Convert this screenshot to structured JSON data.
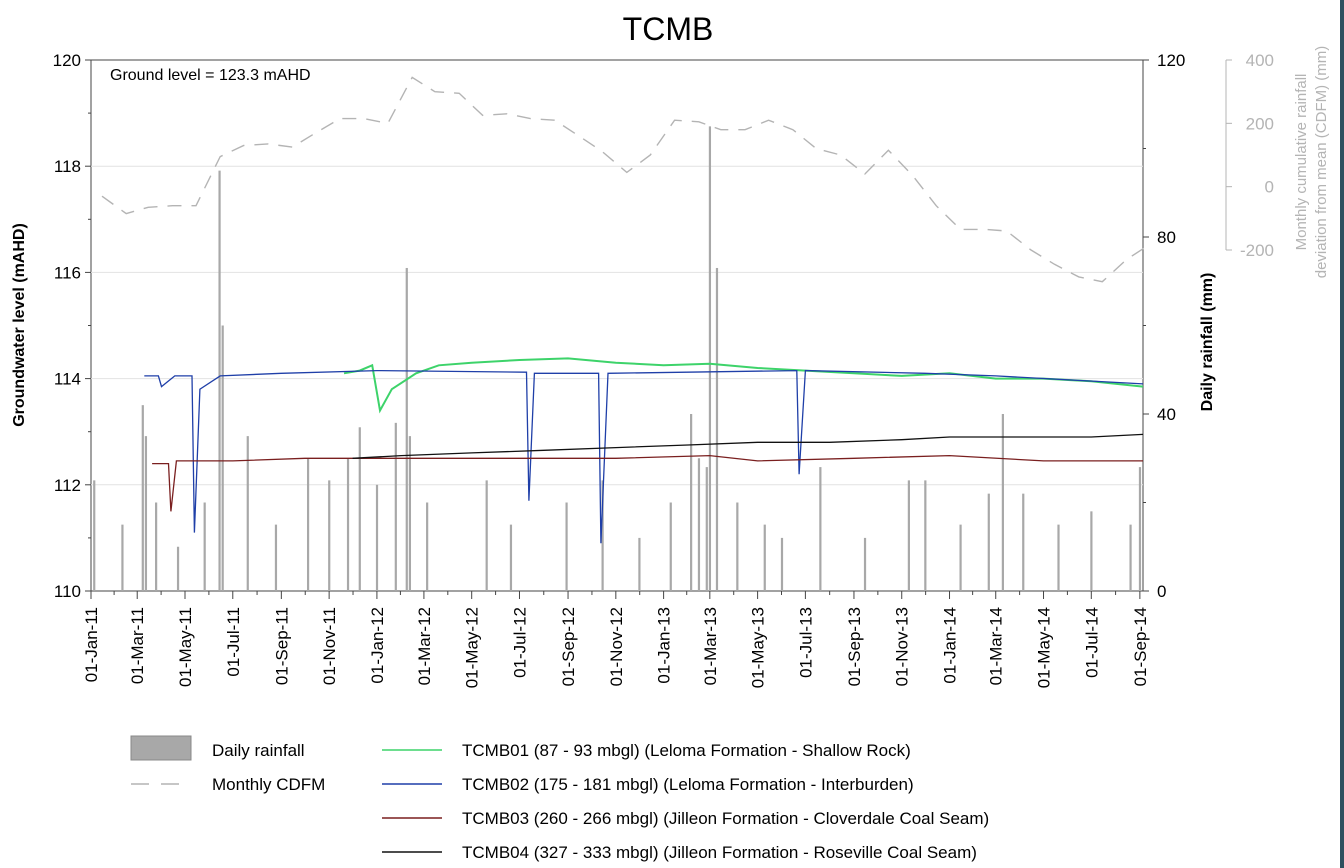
{
  "chart_data": {
    "type": "line",
    "title": "TCMB",
    "annotation": "Ground level = 123.3 mAHD",
    "left_axis": {
      "label": "Groundwater level (mAHD)",
      "range": [
        110,
        120
      ],
      "ticks": [
        "110",
        "112",
        "114",
        "116",
        "118",
        "120"
      ]
    },
    "right_axis_1": {
      "label": "Daily rainfall (mm)",
      "range": [
        0,
        120
      ],
      "ticks": [
        "0",
        "40",
        "80",
        "120"
      ]
    },
    "right_axis_2": {
      "label_lines": [
        "Monthly cumulative rainfall",
        "deviation from mean (CDFM) (mm)"
      ],
      "range": [
        -200,
        400
      ],
      "ticks": [
        "-200",
        "0",
        "200",
        "400"
      ],
      "color": "#b4b4b4"
    },
    "x_axis": {
      "ticks": [
        "01-Jan-11",
        "01-Mar-11",
        "01-May-11",
        "01-Jul-11",
        "01-Sep-11",
        "01-Nov-11",
        "01-Jan-12",
        "01-Mar-12",
        "01-May-12",
        "01-Jul-12",
        "01-Sep-12",
        "01-Nov-12",
        "01-Jan-13",
        "01-Mar-13",
        "01-May-13",
        "01-Jul-13",
        "01-Sep-13",
        "01-Nov-13",
        "01-Jan-14",
        "01-Mar-14",
        "01-May-14",
        "01-Jul-14",
        "01-Sep-14"
      ]
    },
    "legend": [
      {
        "label": "Daily rainfall",
        "kind": "bar",
        "color": "#a8a8a8"
      },
      {
        "label": "Monthly CDFM",
        "kind": "dash",
        "color": "#b4b4b4"
      },
      {
        "label": "TCMB01 (87 - 93 mbgl) (Leloma Formation - Shallow Rock)",
        "kind": "line",
        "color": "#3dd36a"
      },
      {
        "label": "TCMB02 (175 - 181 mbgl) (Leloma Formation - Interburden)",
        "kind": "line",
        "color": "#1f3fa8"
      },
      {
        "label": "TCMB03 (260 - 266 mbgl) (Jilleon Formation - Cloverdale Coal Seam)",
        "kind": "line",
        "color": "#7a1f1f"
      },
      {
        "label": "TCMB04 (327 - 333 mbgl) (Jilleon Formation - Roseville Coal Seam)",
        "kind": "line",
        "color": "#111111"
      }
    ],
    "cdfm": {
      "name": "Monthly CDFM",
      "color": "#b4b4b4",
      "x": [
        "2011-01",
        "2011-02",
        "2011-03",
        "2011-04",
        "2011-05",
        "2011-06",
        "2011-07",
        "2011-08",
        "2011-09",
        "2011-10",
        "2011-11",
        "2011-12",
        "2012-01",
        "2012-02",
        "2012-03",
        "2012-04",
        "2012-05",
        "2012-06",
        "2012-07",
        "2012-08",
        "2012-09",
        "2012-10",
        "2012-11",
        "2012-12",
        "2013-01",
        "2013-02",
        "2013-03",
        "2013-04",
        "2013-05",
        "2013-06",
        "2013-07",
        "2013-08",
        "2013-09",
        "2013-10",
        "2013-11",
        "2013-12",
        "2014-01",
        "2014-02",
        "2014-03",
        "2014-04",
        "2014-05",
        "2014-06",
        "2014-07",
        "2014-08",
        "2014-09"
      ],
      "values": [
        -30,
        -85,
        -65,
        -60,
        -60,
        95,
        130,
        135,
        125,
        170,
        215,
        215,
        200,
        345,
        300,
        295,
        225,
        230,
        215,
        210,
        160,
        110,
        45,
        100,
        210,
        205,
        180,
        180,
        210,
        180,
        120,
        100,
        40,
        115,
        35,
        -60,
        -135,
        -135,
        -140,
        -200,
        -245,
        -285,
        -300,
        -230,
        -180
      ]
    },
    "series": [
      {
        "name": "TCMB01 (87 - 93 mbgl) (Leloma Formation - Shallow Rock)",
        "color": "#3dd36a",
        "x": [
          "2011-11-20",
          "2011-12-10",
          "2011-12-26",
          "2012-01-05",
          "2012-01-20",
          "2012-02-20",
          "2012-03-20",
          "2012-05-01",
          "2012-07-01",
          "2012-09-01",
          "2012-11-01",
          "2013-01-01",
          "2013-03-01",
          "2013-05-01",
          "2013-07-01",
          "2013-09-01",
          "2013-11-01",
          "2014-01-01",
          "2014-03-01",
          "2014-05-01",
          "2014-07-01",
          "2014-09-05"
        ],
        "values": [
          114.1,
          114.15,
          114.25,
          113.4,
          113.8,
          114.1,
          114.25,
          114.3,
          114.35,
          114.38,
          114.3,
          114.25,
          114.28,
          114.2,
          114.15,
          114.1,
          114.05,
          114.1,
          114.0,
          114.0,
          113.95,
          113.85
        ]
      },
      {
        "name": "TCMB02 (175 - 181 mbgl) (Leloma Formation - Interburden)",
        "color": "#1f3fa8",
        "x": [
          "2011-03-10",
          "2011-03-28",
          "2011-04-01",
          "2011-04-18",
          "2011-05-10",
          "2011-05-13",
          "2011-05-20",
          "2011-06-15",
          "2011-09-01",
          "2012-01-01",
          "2012-07-10",
          "2012-07-13",
          "2012-07-20",
          "2012-10-10",
          "2012-10-13",
          "2012-10-22",
          "2013-06-20",
          "2013-06-23",
          "2013-07-01",
          "2013-12-01",
          "2014-03-01",
          "2014-09-05"
        ],
        "values": [
          114.05,
          114.05,
          113.85,
          114.05,
          114.05,
          111.1,
          113.8,
          114.05,
          114.1,
          114.15,
          114.12,
          111.7,
          114.1,
          114.1,
          110.9,
          114.1,
          114.15,
          112.2,
          114.15,
          114.1,
          114.05,
          113.9
        ]
      },
      {
        "name": "TCMB03 (260 - 266 mbgl) (Jilleon Formation - Cloverdale Coal Seam)",
        "color": "#7a1f1f",
        "x": [
          "2011-03-20",
          "2011-04-10",
          "2011-04-13",
          "2011-04-20",
          "2011-07-01",
          "2011-10-01",
          "2011-12-01",
          "2012-03-01",
          "2012-07-01",
          "2012-11-01",
          "2013-03-01",
          "2013-05-01",
          "2013-09-01",
          "2014-01-01",
          "2014-05-01",
          "2014-09-05"
        ],
        "values": [
          112.4,
          112.4,
          111.5,
          112.45,
          112.45,
          112.5,
          112.5,
          112.5,
          112.5,
          112.5,
          112.55,
          112.45,
          112.5,
          112.55,
          112.45,
          112.45
        ]
      },
      {
        "name": "TCMB04 (327 - 333 mbgl) (Jilleon Formation - Roseville Coal Seam)",
        "color": "#111111",
        "x": [
          "2011-12-01",
          "2012-02-01",
          "2012-05-01",
          "2012-08-01",
          "2012-11-01",
          "2013-02-01",
          "2013-05-01",
          "2013-08-01",
          "2013-11-01",
          "2014-01-01",
          "2014-04-01",
          "2014-07-01",
          "2014-09-05"
        ],
        "values": [
          112.5,
          112.55,
          112.6,
          112.65,
          112.7,
          112.75,
          112.8,
          112.8,
          112.85,
          112.9,
          112.9,
          112.9,
          112.95
        ]
      }
    ],
    "rainfall_peaks": {
      "name": "Daily rainfall",
      "color": "#a8a8a8",
      "x": [
        "2011-01-05",
        "2011-02-10",
        "2011-03-08",
        "2011-03-12",
        "2011-03-25",
        "2011-04-22",
        "2011-05-26",
        "2011-06-14",
        "2011-06-18",
        "2011-07-20",
        "2011-08-25",
        "2011-10-05",
        "2011-11-01",
        "2011-11-25",
        "2011-12-10",
        "2012-01-01",
        "2012-01-25",
        "2012-02-08",
        "2012-02-12",
        "2012-03-05",
        "2012-05-20",
        "2012-06-20",
        "2012-08-30",
        "2012-10-15",
        "2012-12-01",
        "2013-01-10",
        "2013-02-05",
        "2013-02-15",
        "2013-02-25",
        "2013-03-01",
        "2013-03-10",
        "2013-04-05",
        "2013-05-10",
        "2013-06-01",
        "2013-07-20",
        "2013-09-15",
        "2013-11-10",
        "2013-12-01",
        "2014-01-15",
        "2014-02-20",
        "2014-03-10",
        "2014-04-05",
        "2014-05-20",
        "2014-07-01",
        "2014-08-20",
        "2014-09-01"
      ],
      "values": [
        25,
        15,
        42,
        35,
        20,
        10,
        20,
        95,
        60,
        35,
        15,
        30,
        25,
        30,
        37,
        24,
        38,
        73,
        35,
        20,
        25,
        15,
        20,
        25,
        12,
        20,
        40,
        30,
        28,
        105,
        73,
        20,
        15,
        12,
        28,
        12,
        25,
        25,
        15,
        22,
        40,
        22,
        15,
        18,
        15,
        28
      ]
    }
  }
}
